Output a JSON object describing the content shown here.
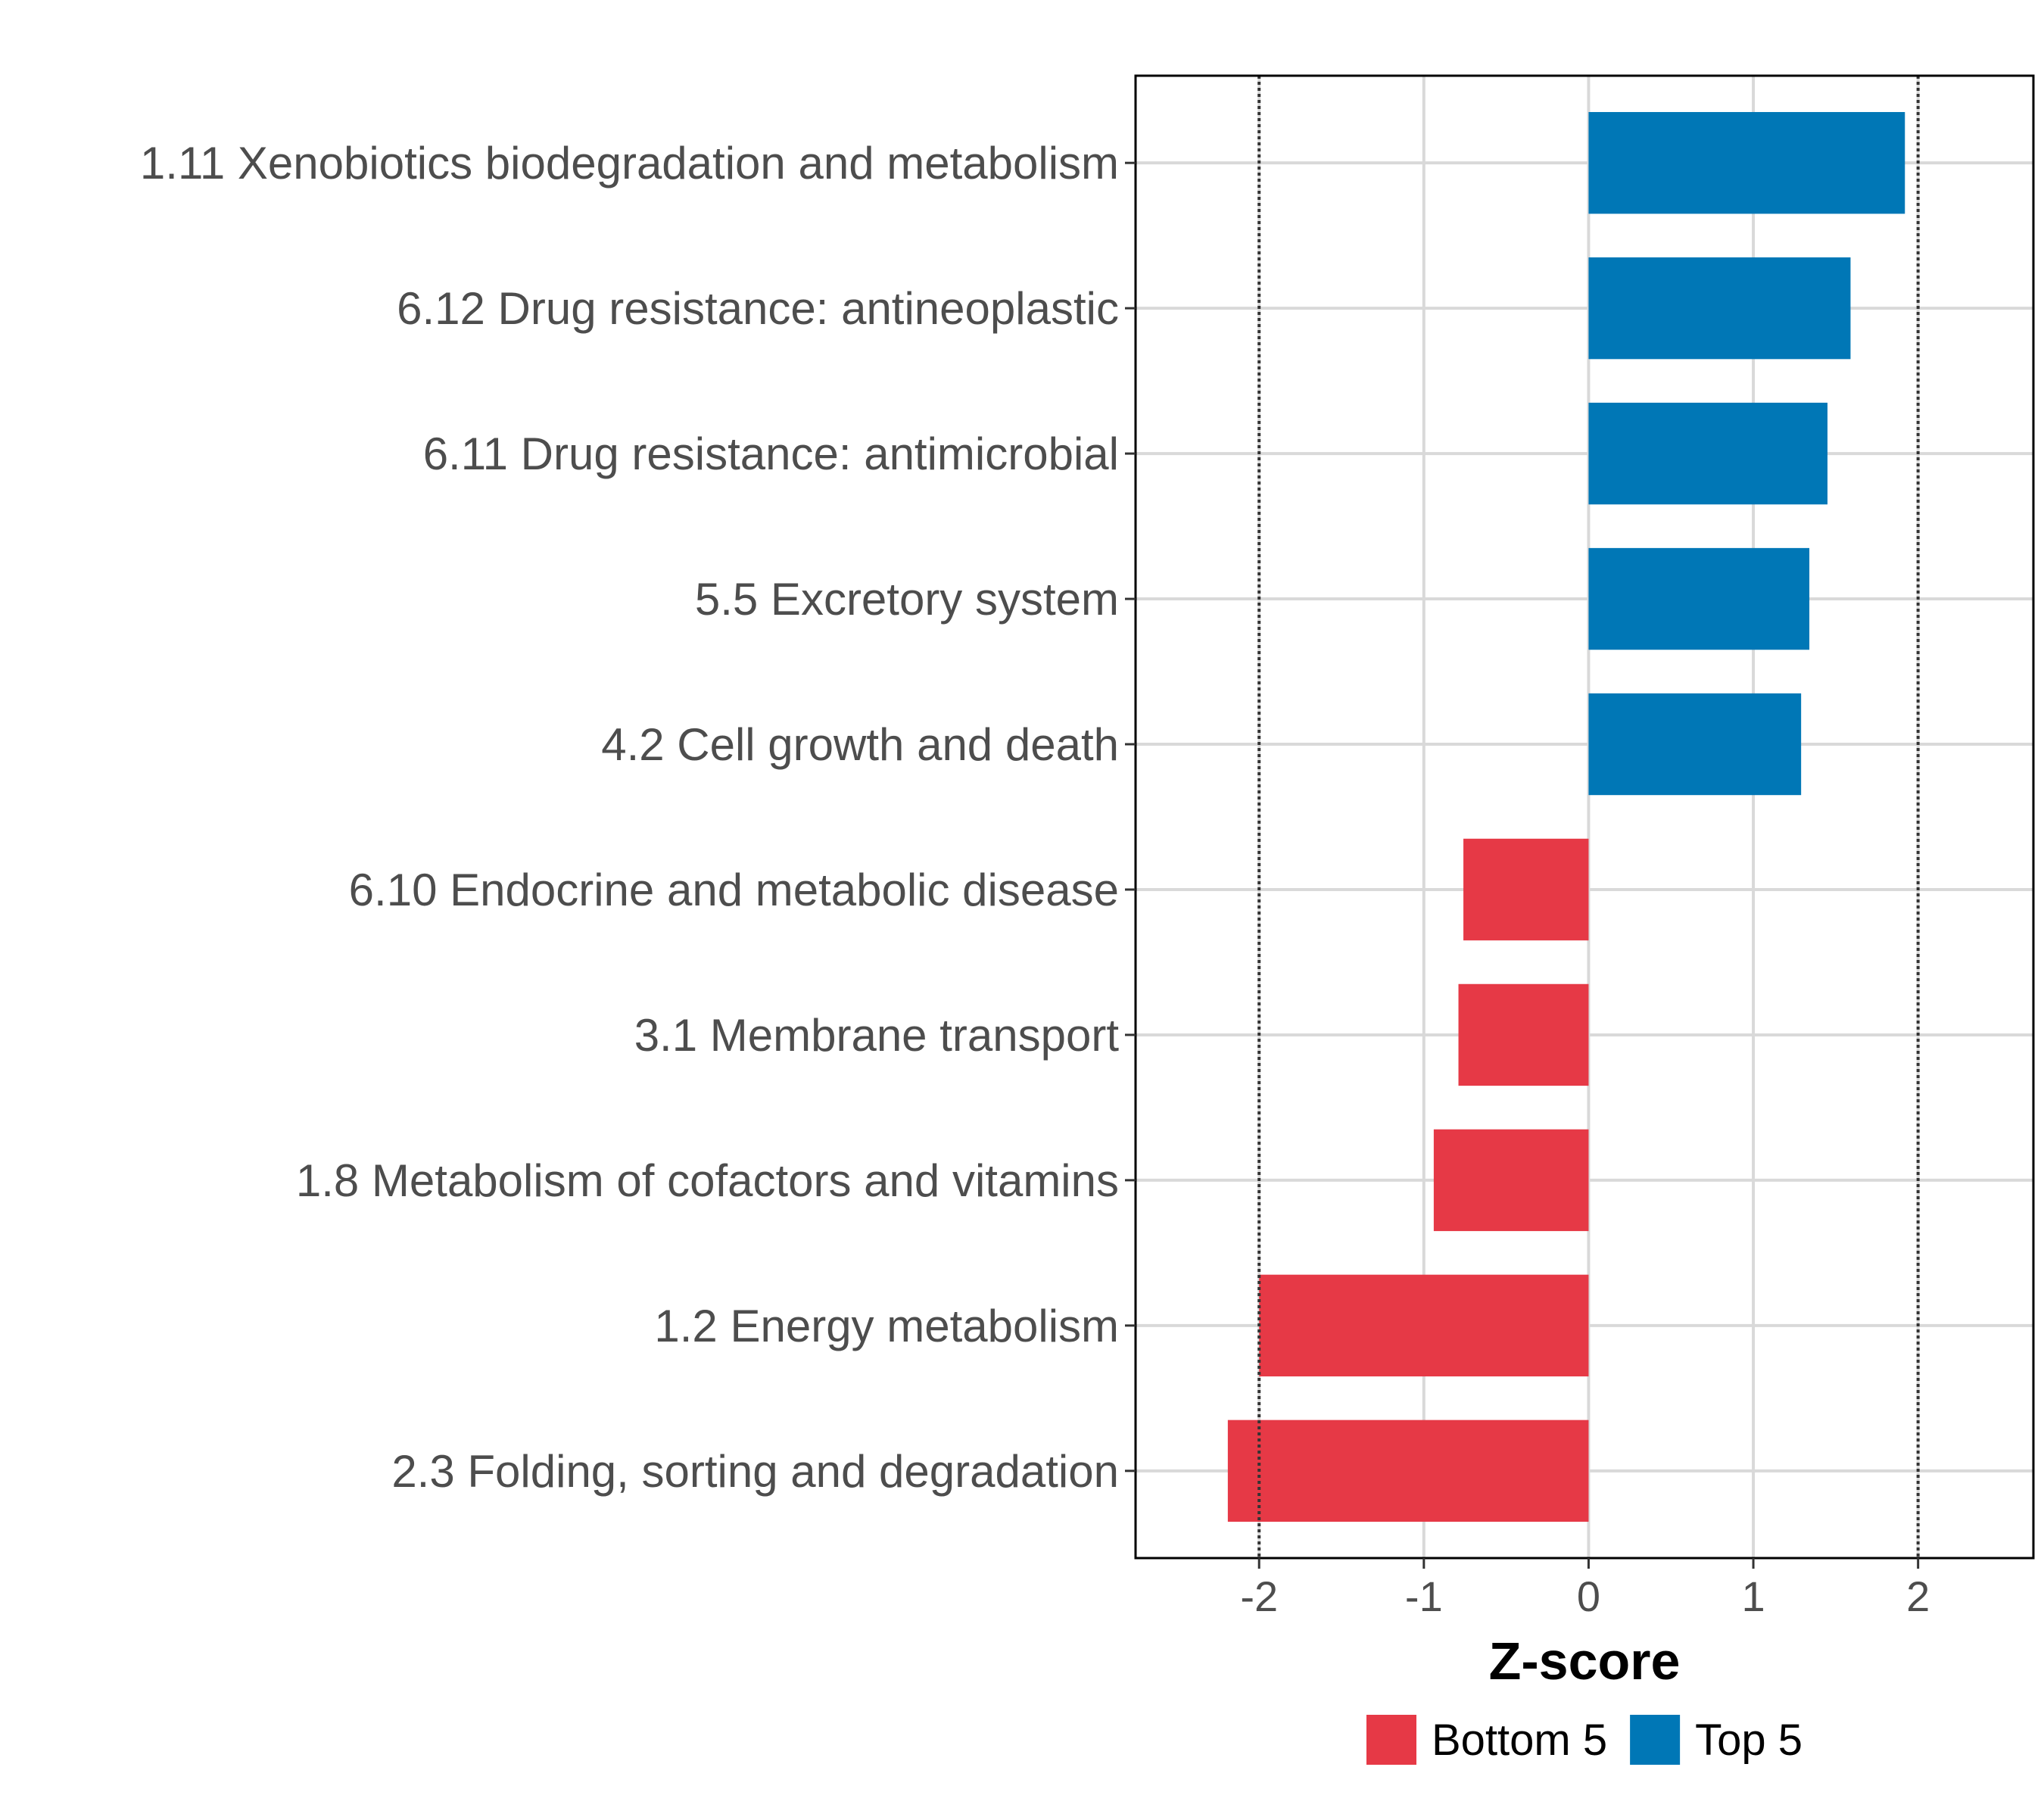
{
  "chart_data": {
    "type": "bar",
    "orientation": "horizontal",
    "xlabel": "Z-score",
    "ylabel": "",
    "xlim": [
      -2.75,
      2.7
    ],
    "xticks": [
      -2,
      -1,
      0,
      1,
      2
    ],
    "xtick_labels": [
      "-2",
      "-1",
      "0",
      "1",
      "2"
    ],
    "reference_lines": [
      -2,
      2
    ],
    "grid": true,
    "categories": [
      "1.11 Xenobiotics biodegradation and metabolism",
      "6.12 Drug resistance: antineoplastic",
      "6.11 Drug resistance: antimicrobial",
      "5.5 Excretory system",
      "4.2 Cell growth and death",
      "6.10 Endocrine and metabolic disease",
      "3.1 Membrane transport",
      "1.8 Metabolism of cofactors and vitamins",
      "1.2 Energy metabolism",
      "2.3 Folding, sorting and degradation"
    ],
    "values": [
      1.92,
      1.59,
      1.45,
      1.34,
      1.29,
      -0.76,
      -0.79,
      -0.94,
      -2.0,
      -2.19
    ],
    "groups": [
      "Top 5",
      "Top 5",
      "Top 5",
      "Top 5",
      "Top 5",
      "Bottom 5",
      "Bottom 5",
      "Bottom 5",
      "Bottom 5",
      "Bottom 5"
    ],
    "legend": {
      "position": "bottom",
      "entries": [
        {
          "label": "Bottom 5",
          "color": "#e63946"
        },
        {
          "label": "Top 5",
          "color": "#0077b6"
        }
      ]
    }
  }
}
